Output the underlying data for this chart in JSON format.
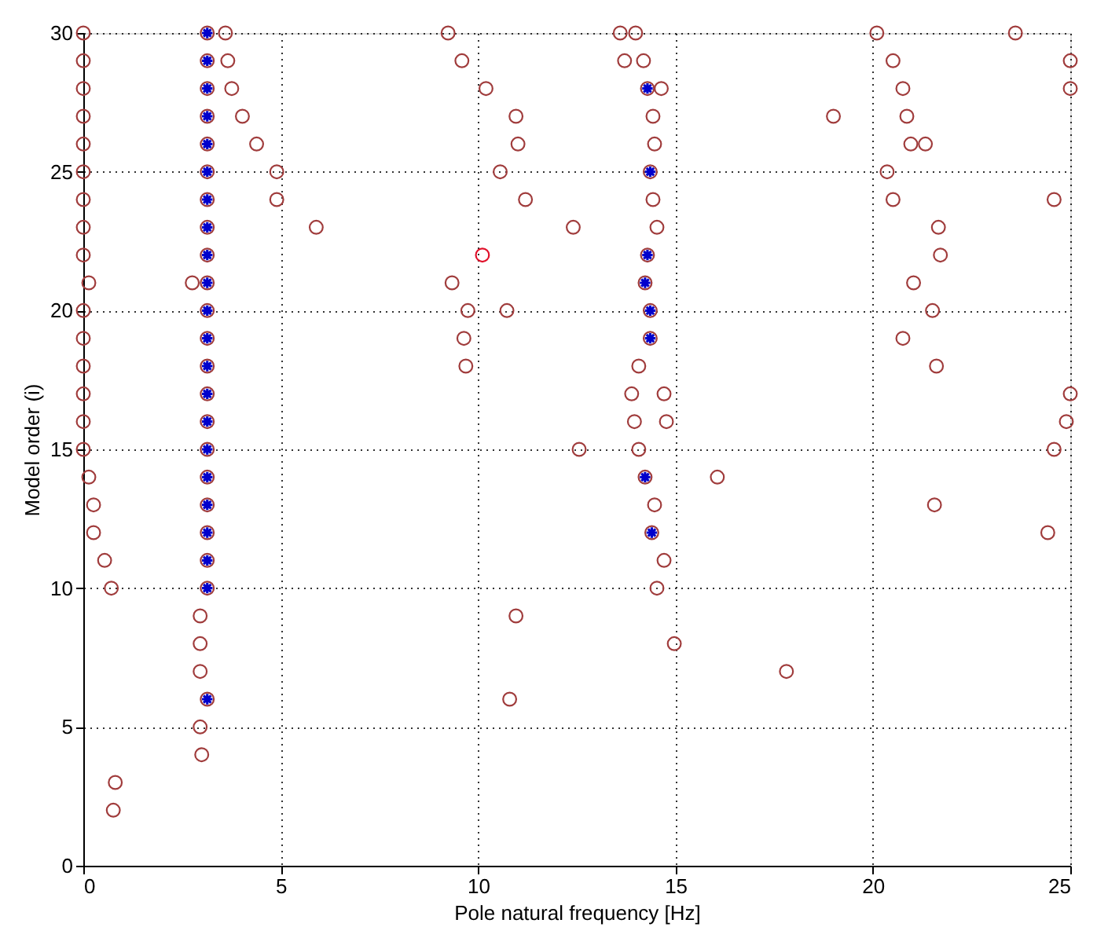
{
  "chart_data": {
    "type": "scatter",
    "xlabel": "Pole natural frequency [Hz]",
    "ylabel": "Model order (i)",
    "xlim": [
      0,
      25
    ],
    "ylim": [
      0,
      30
    ],
    "xticks": [
      0,
      5,
      10,
      15,
      20,
      25
    ],
    "yticks": [
      0,
      5,
      10,
      15,
      20,
      25,
      30
    ],
    "grid": true,
    "series": [
      {
        "color": "#a03c3c",
        "marker": "circle",
        "x": [
          0,
          0,
          0,
          0,
          0,
          0,
          0,
          0,
          0,
          0.14,
          0,
          0,
          0,
          0,
          0,
          0,
          0.14,
          0.26,
          0.26,
          0.54,
          0.71,
          0.81,
          0.76,
          3.14,
          3.14,
          3.14,
          3.14,
          3.14,
          3.14,
          3.14,
          3.14,
          3.14,
          3.14,
          3.14,
          3.14,
          3.14,
          3.14,
          3.14,
          3.14,
          3.14,
          3.14,
          3.14,
          3.14,
          3.14,
          2.96,
          2.96,
          2.96,
          3.14,
          2.96,
          3.0,
          2.76,
          3.6,
          3.66,
          3.76,
          4.03,
          4.39,
          4.9,
          4.9,
          5.9,
          9.24,
          9.59,
          10.2,
          10.96,
          11.01,
          10.56,
          11.2,
          12.41,
          9.34,
          9.74,
          10.73,
          9.64,
          9.69,
          12.56,
          10.96,
          10.8,
          13.6,
          13.99,
          13.71,
          14.19,
          14.29,
          14.64,
          14.43,
          14.47,
          14.36,
          14.43,
          14.53,
          14.29,
          14.23,
          14.36,
          14.36,
          14.07,
          13.89,
          14.71,
          13.96,
          14.77,
          14.07,
          14.23,
          14.47,
          14.4,
          14.71,
          14.53,
          14.97,
          16.06,
          17.81,
          19.0,
          20.1,
          23.61,
          20.51,
          25,
          20.76,
          25,
          20.86,
          20.96,
          21.33,
          20.36,
          20.51,
          24.59,
          21.66,
          21.71,
          21.03,
          21.51,
          20.76,
          21.61,
          25,
          24.9,
          24.59,
          21.56,
          24.43
        ],
        "values": [
          30,
          29,
          28,
          27,
          26,
          25,
          24,
          23,
          22,
          21,
          20,
          19,
          18,
          17,
          16,
          15,
          14,
          13,
          12,
          11,
          10,
          3,
          2,
          30,
          29,
          28,
          27,
          26,
          25,
          24,
          23,
          22,
          21,
          20,
          19,
          18,
          17,
          16,
          15,
          14,
          13,
          12,
          11,
          10,
          9,
          8,
          7,
          6,
          5,
          4,
          21,
          30,
          29,
          28,
          27,
          26,
          25,
          24,
          23,
          30,
          29,
          28,
          27,
          26,
          25,
          24,
          23,
          21,
          20,
          20,
          19,
          18,
          15,
          9,
          6,
          30,
          30,
          29,
          29,
          28,
          28,
          27,
          26,
          25,
          24,
          23,
          22,
          21,
          20,
          19,
          18,
          17,
          17,
          16,
          16,
          15,
          14,
          13,
          12,
          11,
          10,
          8,
          14,
          7,
          27,
          30,
          30,
          29,
          29,
          28,
          28,
          27,
          26,
          26,
          25,
          24,
          24,
          23,
          22,
          21,
          20,
          19,
          18,
          17,
          16,
          15,
          13,
          12
        ]
      },
      {
        "color": "#0000cc",
        "marker": "cross",
        "x": [
          3.14,
          3.14,
          3.14,
          3.14,
          3.14,
          3.14,
          3.14,
          3.14,
          3.14,
          3.14,
          3.14,
          3.14,
          3.14,
          3.14,
          3.14,
          3.14,
          3.14,
          3.14,
          3.14,
          3.14,
          3.14,
          3.14,
          14.29,
          14.36,
          14.29,
          14.23,
          14.36,
          14.36,
          14.23,
          14.4
        ],
        "values": [
          30,
          29,
          28,
          27,
          26,
          25,
          24,
          23,
          22,
          21,
          20,
          19,
          18,
          17,
          16,
          15,
          14,
          13,
          12,
          11,
          10,
          6,
          28,
          25,
          22,
          21,
          20,
          19,
          14,
          12
        ]
      },
      {
        "color": "#e0102a",
        "marker": "circle",
        "x": [
          10.11
        ],
        "values": [
          22
        ]
      }
    ]
  }
}
